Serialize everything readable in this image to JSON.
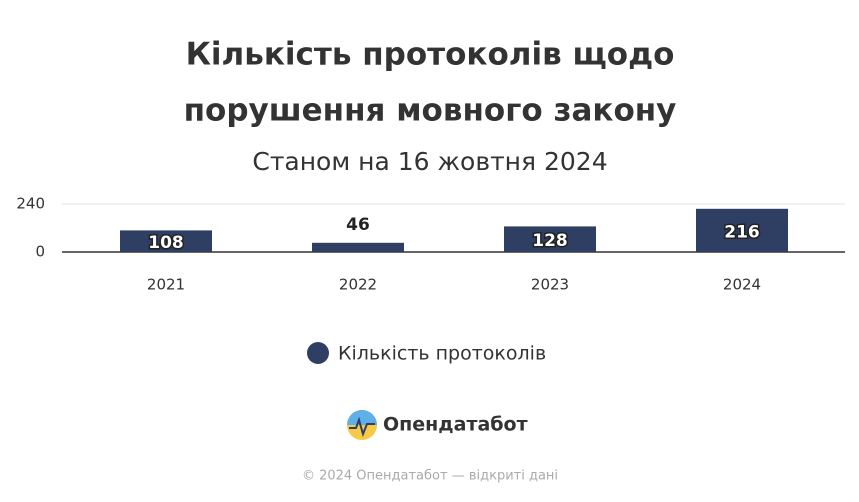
{
  "chart_data": {
    "type": "bar",
    "title": [
      "Кількість протоколів щодо",
      "порушення мовного закону"
    ],
    "subtitle": "Станом на 16 жовтня 2024",
    "categories": [
      "2021",
      "2022",
      "2023",
      "2024"
    ],
    "series": [
      {
        "name": "Кількість протоколів",
        "color": "#2e3f63",
        "values": [
          108,
          46,
          128,
          216
        ]
      }
    ],
    "ylim": [
      0,
      240
    ],
    "yticks": [
      0,
      240
    ],
    "grid": true,
    "legend": "bottom"
  },
  "branding": {
    "logo_text": "Опендатабот",
    "copyright": "© 2024 Опендатабот — відкриті дані"
  }
}
